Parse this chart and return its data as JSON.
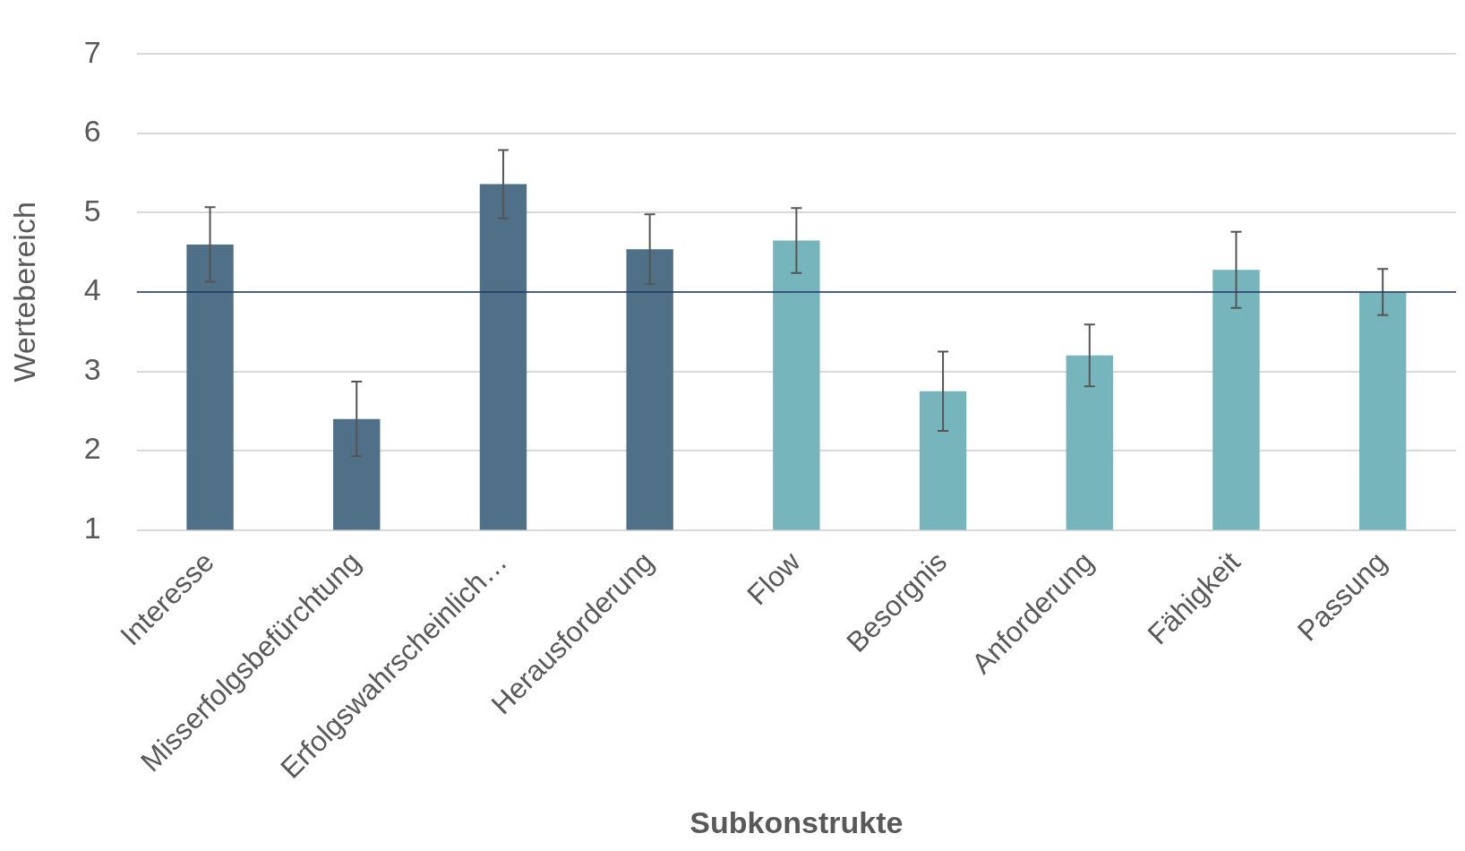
{
  "chart_data": {
    "type": "bar",
    "xlabel": "Subkonstrukte",
    "ylabel": "Wertebereich",
    "categories": [
      "Interesse",
      "Misserfolgsbefürchtung",
      "Erfolgswahrscheinlich…",
      "Herausforderung",
      "Flow",
      "Besorgnis",
      "Anforderung",
      "Fähigkeit",
      "Passung"
    ],
    "values": [
      4.6,
      2.4,
      5.36,
      4.54,
      4.65,
      2.75,
      3.2,
      4.28,
      4.0
    ],
    "errors": [
      0.47,
      0.47,
      0.43,
      0.44,
      0.41,
      0.5,
      0.39,
      0.48,
      0.29
    ],
    "colors": [
      "#507088",
      "#507088",
      "#507088",
      "#507088",
      "#76b5bb",
      "#76b5bb",
      "#76b5bb",
      "#76b5bb",
      "#76b5bb"
    ],
    "ylim": [
      1,
      7
    ],
    "yticks": [
      1,
      2,
      3,
      4,
      5,
      6,
      7
    ],
    "grid": "y",
    "legend": false,
    "ref_lines": [
      {
        "axis": "y",
        "value": 4,
        "color": "#1f3864"
      }
    ]
  }
}
